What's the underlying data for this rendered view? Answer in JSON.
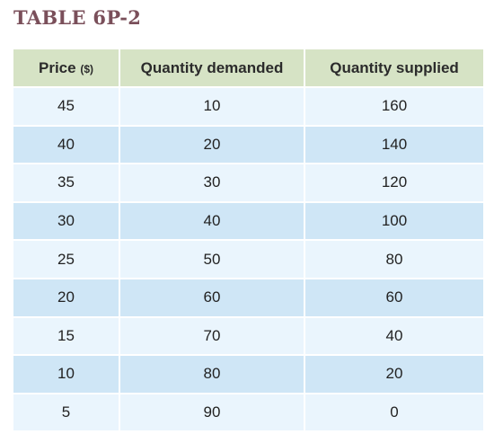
{
  "title": "TABLE 6P-2",
  "table": {
    "headers": {
      "price": "Price",
      "price_unit": "($)",
      "quantity_demanded": "Quantity demanded",
      "quantity_supplied": "Quantity supplied"
    },
    "rows": [
      {
        "price": "45",
        "quantity_demanded": "10",
        "quantity_supplied": "160"
      },
      {
        "price": "40",
        "quantity_demanded": "20",
        "quantity_supplied": "140"
      },
      {
        "price": "35",
        "quantity_demanded": "30",
        "quantity_supplied": "120"
      },
      {
        "price": "30",
        "quantity_demanded": "40",
        "quantity_supplied": "100"
      },
      {
        "price": "25",
        "quantity_demanded": "50",
        "quantity_supplied": "80"
      },
      {
        "price": "20",
        "quantity_demanded": "60",
        "quantity_supplied": "60"
      },
      {
        "price": "15",
        "quantity_demanded": "70",
        "quantity_supplied": "40"
      },
      {
        "price": "10",
        "quantity_demanded": "80",
        "quantity_supplied": "20"
      },
      {
        "price": "5",
        "quantity_demanded": "90",
        "quantity_supplied": "0"
      }
    ]
  },
  "colors": {
    "title": "#7a4f5a",
    "header_bg": "#d6e3c5",
    "row_light": "#eaf5fd",
    "row_dark": "#cfe6f6"
  }
}
